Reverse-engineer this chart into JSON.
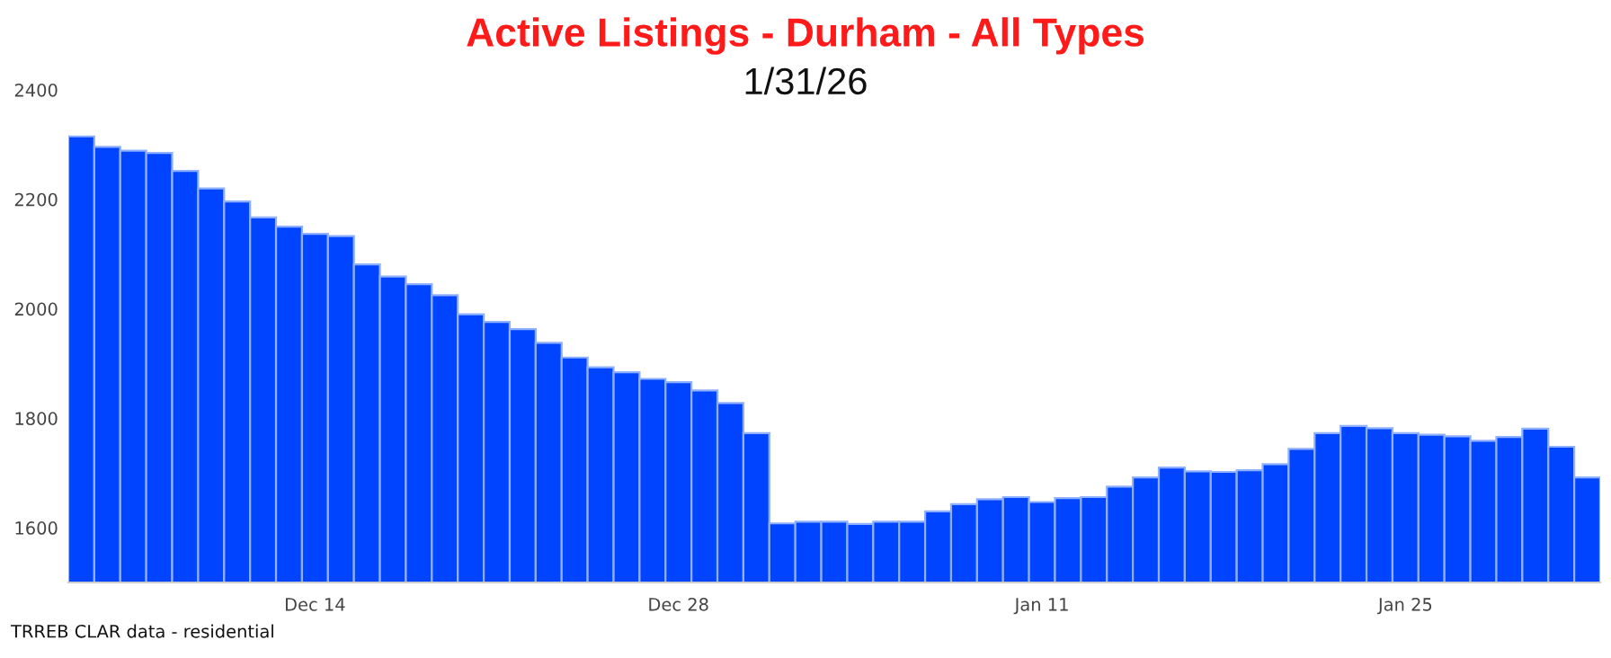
{
  "chart_data": {
    "type": "bar",
    "title": "Active Listings - Durham - All Types",
    "subtitle": "1/31/26",
    "annotations": [
      "TRREB CLAR data - residential"
    ],
    "categories": [
      null,
      null,
      null,
      null,
      null,
      null,
      null,
      null,
      null,
      "Dec 14",
      null,
      null,
      null,
      null,
      null,
      null,
      null,
      null,
      null,
      null,
      null,
      null,
      null,
      "Dec 28",
      null,
      null,
      null,
      null,
      null,
      null,
      null,
      null,
      null,
      null,
      null,
      null,
      null,
      "Jan 11",
      null,
      null,
      null,
      null,
      null,
      null,
      null,
      null,
      null,
      null,
      null,
      null,
      null,
      "Jan 25",
      null,
      null,
      null,
      null,
      null,
      null,
      null
    ],
    "series": [
      {
        "color": "#0044ff",
        "values": [
          2315,
          2296,
          2289,
          2285,
          2252,
          2220,
          2196,
          2167,
          2150,
          2137,
          2133,
          2081,
          2059,
          2045,
          2025,
          1990,
          1976,
          1963,
          1938,
          1911,
          1893,
          1884,
          1872,
          1866,
          1851,
          1828,
          1773,
          1608,
          1611,
          1611,
          1607,
          1611,
          1611,
          1630,
          1643,
          1652,
          1656,
          1647,
          1654,
          1656,
          1675,
          1692,
          1710,
          1703,
          1702,
          1705,
          1716,
          1744,
          1773,
          1786,
          1782,
          1773,
          1770,
          1767,
          1759,
          1766,
          1781,
          1748,
          1692
        ]
      }
    ],
    "ylim": [
      1500,
      2400
    ],
    "yticks": [
      1600,
      1800,
      2000,
      2200,
      2400
    ],
    "grid": false
  }
}
